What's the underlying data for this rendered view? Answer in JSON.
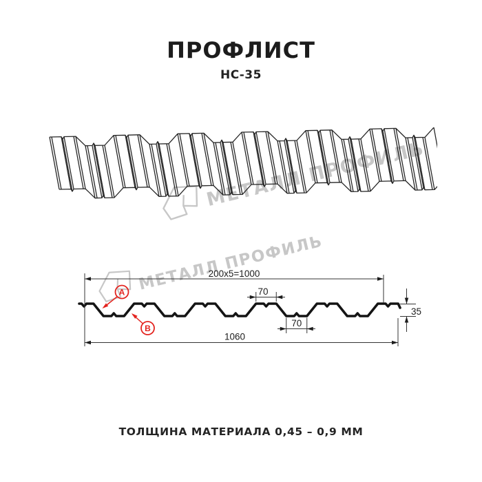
{
  "header": {
    "title": "ПРОФЛИСТ",
    "subtitle": "НС-35"
  },
  "caption": {
    "text": "ТОЛЩИНА МАТЕРИАЛА 0,45 – 0,9 ММ"
  },
  "watermark": {
    "text": "МЕТАЛЛ ПРОФИЛЬ"
  },
  "cross_section": {
    "dim_width_formula": "200x5=1000",
    "dim_crest_width": "70",
    "dim_trough_width": "70",
    "dim_height": "35",
    "dim_total_width": "1060",
    "marker_a": "A",
    "marker_b": "B"
  },
  "colors": {
    "line": "#1a1a1a",
    "marker_red": "#e3231e",
    "watermark_gray": "#c7c7c7"
  }
}
